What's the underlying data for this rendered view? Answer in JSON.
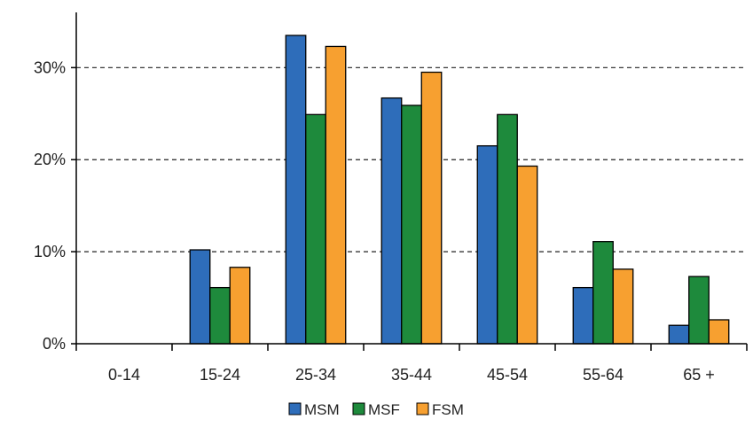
{
  "chart_data": {
    "type": "bar",
    "categories": [
      "0-14",
      "15-24",
      "25-34",
      "35-44",
      "45-54",
      "55-64",
      "65 +"
    ],
    "series": [
      {
        "name": "MSM",
        "color": "#2E6DBA",
        "values": [
          0,
          10.2,
          33.5,
          26.7,
          21.5,
          6.1,
          2.0
        ]
      },
      {
        "name": "MSF",
        "color": "#1E8A3C",
        "values": [
          0,
          6.1,
          24.9,
          25.9,
          24.9,
          11.1,
          7.3
        ]
      },
      {
        "name": "FSM",
        "color": "#F7A030",
        "values": [
          0,
          8.3,
          32.3,
          29.5,
          19.3,
          8.1,
          2.6
        ]
      }
    ],
    "ylim": [
      0,
      36
    ],
    "yticks": [
      0,
      10,
      20,
      30
    ],
    "ytick_labels": [
      "0%",
      "10%",
      "20%",
      "30%"
    ],
    "grid": "dashed-horizontal",
    "legend_position": "bottom-center"
  }
}
